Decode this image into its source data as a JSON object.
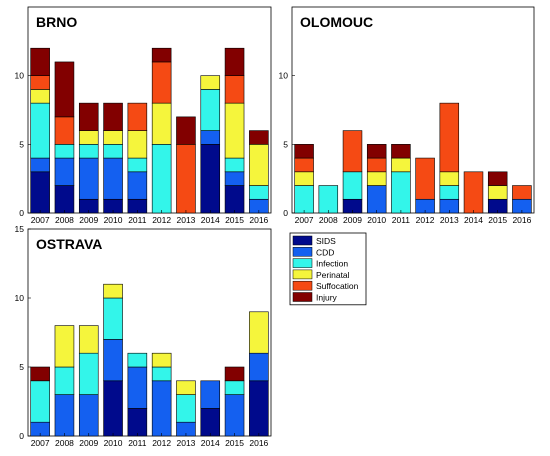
{
  "chart_data": {
    "type": "bar",
    "stacked": true,
    "grid": false,
    "legend_position": "right of OSTRAVA panel",
    "legend_entries": [
      "SIDS",
      "CDD",
      "Infection",
      "Perinatal",
      "Suffocation",
      "Injury"
    ],
    "colors": [
      "#000a8c",
      "#1460f0",
      "#33f5ea",
      "#f5f53c",
      "#f54a14",
      "#820000"
    ],
    "panels": [
      {
        "title": "BRNO",
        "categories": [
          "2007",
          "2008",
          "2009",
          "2010",
          "2011",
          "2012",
          "2013",
          "2014",
          "2015",
          "2016"
        ],
        "ylim": [
          0,
          15
        ],
        "yticks": [
          0,
          5,
          10
        ],
        "series": [
          {
            "name": "SIDS",
            "values": [
              3,
              2,
              1,
              1,
              1,
              0,
              0,
              5,
              2,
              0
            ]
          },
          {
            "name": "CDD",
            "values": [
              1,
              2,
              3,
              3,
              2,
              0,
              0,
              1,
              1,
              1
            ]
          },
          {
            "name": "Infection",
            "values": [
              4,
              1,
              1,
              1,
              1,
              5,
              0,
              3,
              1,
              1
            ]
          },
          {
            "name": "Perinatal",
            "values": [
              1,
              0,
              1,
              1,
              2,
              3,
              0,
              1,
              4,
              3
            ]
          },
          {
            "name": "Suffocation",
            "values": [
              1,
              2,
              0,
              0,
              2,
              3,
              5,
              0,
              2,
              0
            ]
          },
          {
            "name": "Injury",
            "values": [
              2,
              4,
              2,
              2,
              0,
              1,
              2,
              0,
              2,
              1
            ]
          }
        ]
      },
      {
        "title": "OLOMOUC",
        "categories": [
          "2007",
          "2008",
          "2009",
          "2010",
          "2011",
          "2012",
          "2013",
          "2014",
          "2015",
          "2016"
        ],
        "ylim": [
          0,
          15
        ],
        "yticks": [
          0,
          5,
          10
        ],
        "series": [
          {
            "name": "SIDS",
            "values": [
              0,
              0,
              1,
              0,
              0,
              0,
              0,
              0,
              1,
              0
            ]
          },
          {
            "name": "CDD",
            "values": [
              0,
              0,
              0,
              2,
              0,
              1,
              1,
              0,
              0,
              1
            ]
          },
          {
            "name": "Infection",
            "values": [
              2,
              2,
              2,
              0,
              3,
              0,
              1,
              0,
              0,
              0
            ]
          },
          {
            "name": "Perinatal",
            "values": [
              1,
              0,
              0,
              1,
              1,
              0,
              1,
              0,
              1,
              0
            ]
          },
          {
            "name": "Suffocation",
            "values": [
              1,
              0,
              3,
              1,
              0,
              3,
              5,
              3,
              0,
              1
            ]
          },
          {
            "name": "Injury",
            "values": [
              1,
              0,
              0,
              1,
              1,
              0,
              0,
              0,
              1,
              0
            ]
          }
        ]
      },
      {
        "title": "OSTRAVA",
        "categories": [
          "2007",
          "2008",
          "2009",
          "2010",
          "2011",
          "2012",
          "2013",
          "2014",
          "2015",
          "2016"
        ],
        "ylim": [
          0,
          15
        ],
        "yticks": [
          0,
          5,
          10,
          15
        ],
        "series": [
          {
            "name": "SIDS",
            "values": [
              0,
              0,
              0,
              4,
              2,
              0,
              0,
              2,
              0,
              4
            ]
          },
          {
            "name": "CDD",
            "values": [
              1,
              3,
              3,
              3,
              3,
              4,
              1,
              2,
              3,
              2
            ]
          },
          {
            "name": "Infection",
            "values": [
              3,
              2,
              3,
              3,
              1,
              1,
              2,
              0,
              1,
              0
            ]
          },
          {
            "name": "Perinatal",
            "values": [
              0,
              3,
              2,
              1,
              0,
              1,
              1,
              0,
              0,
              3
            ]
          },
          {
            "name": "Suffocation",
            "values": [
              0,
              0,
              0,
              0,
              0,
              0,
              0,
              0,
              0,
              0
            ]
          },
          {
            "name": "Injury",
            "values": [
              1,
              0,
              0,
              0,
              0,
              0,
              0,
              0,
              1,
              0
            ]
          }
        ]
      }
    ]
  }
}
